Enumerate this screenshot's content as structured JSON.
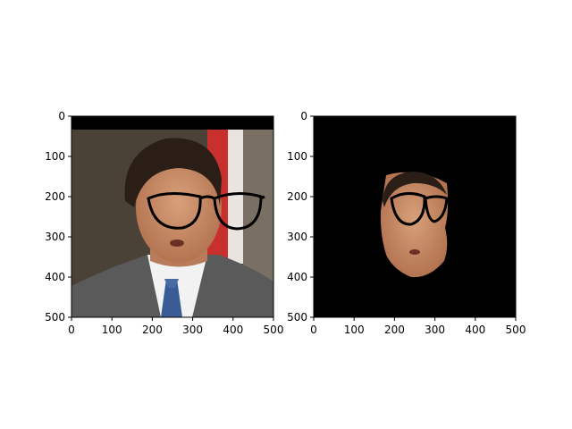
{
  "chart_data": [
    {
      "type": "image",
      "content": "photo of a man in a suit and blue patterned tie with cartoon eyeglasses drawn over his face",
      "xlim": [
        0,
        500
      ],
      "ylim": [
        500,
        0
      ],
      "x_ticks": [
        0,
        100,
        200,
        300,
        400,
        500
      ],
      "y_ticks": [
        0,
        100,
        200,
        300,
        400,
        500
      ],
      "colors": {
        "background": "#4a4236",
        "suit": "#5a5a5a",
        "skin": "#c88a64",
        "hair": "#2a1e16",
        "tie": "#3a5b96",
        "flag_red": "#c8302e"
      }
    },
    {
      "type": "image",
      "content": "segmented face region of the same man with glasses on a black background",
      "xlim": [
        0,
        500
      ],
      "ylim": [
        500,
        0
      ],
      "x_ticks": [
        0,
        100,
        200,
        300,
        400,
        500
      ],
      "y_ticks": [
        0,
        100,
        200,
        300,
        400,
        500
      ],
      "colors": {
        "background": "#000000",
        "skin": "#c88a64",
        "hair": "#2a1e16"
      }
    }
  ]
}
